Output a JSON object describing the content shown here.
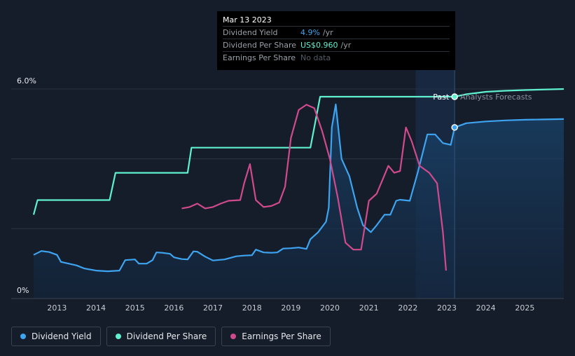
{
  "tooltip": {
    "date": "Mar 13 2023",
    "rows": [
      {
        "label": "Dividend Yield",
        "value": "4.9%",
        "unit": "/yr"
      },
      {
        "label": "Dividend Per Share",
        "value": "US$0.960",
        "unit": "/yr"
      },
      {
        "label": "Earnings Per Share",
        "value": "No data",
        "unit": ""
      }
    ]
  },
  "annotations": {
    "past": "Past",
    "forecast": "Analysts Forecasts"
  },
  "legend": [
    {
      "label": "Dividend Yield",
      "color": "#3ea4f0"
    },
    {
      "label": "Dividend Per Share",
      "color": "#5ff0d0"
    },
    {
      "label": "Earnings Per Share",
      "color": "#d04a8c"
    }
  ],
  "chart_data": {
    "type": "line",
    "x_ticks": [
      "2013",
      "2014",
      "2015",
      "2016",
      "2017",
      "2018",
      "2019",
      "2020",
      "2021",
      "2022",
      "2023",
      "2024",
      "2025"
    ],
    "xlim": [
      2012.4,
      2026.0
    ],
    "ylim": [
      0,
      6.0
    ],
    "ytick_labels": [
      "0%",
      "6.0%"
    ],
    "grid": true,
    "past_forecast_split": 2023.2,
    "series": [
      {
        "name": "Dividend Yield",
        "color": "#3ea4f0",
        "fill": true,
        "points": [
          [
            2012.4,
            1.25
          ],
          [
            2012.6,
            1.36
          ],
          [
            2012.8,
            1.33
          ],
          [
            2013.0,
            1.25
          ],
          [
            2013.1,
            1.05
          ],
          [
            2013.3,
            1.0
          ],
          [
            2013.5,
            0.95
          ],
          [
            2013.7,
            0.86
          ],
          [
            2014.0,
            0.8
          ],
          [
            2014.3,
            0.78
          ],
          [
            2014.6,
            0.8
          ],
          [
            2014.75,
            1.1
          ],
          [
            2015.0,
            1.12
          ],
          [
            2015.1,
            1.0
          ],
          [
            2015.3,
            1.0
          ],
          [
            2015.45,
            1.1
          ],
          [
            2015.55,
            1.32
          ],
          [
            2015.7,
            1.31
          ],
          [
            2015.9,
            1.28
          ],
          [
            2016.0,
            1.18
          ],
          [
            2016.2,
            1.13
          ],
          [
            2016.35,
            1.12
          ],
          [
            2016.5,
            1.35
          ],
          [
            2016.6,
            1.34
          ],
          [
            2016.8,
            1.2
          ],
          [
            2017.0,
            1.09
          ],
          [
            2017.3,
            1.12
          ],
          [
            2017.6,
            1.21
          ],
          [
            2017.8,
            1.23
          ],
          [
            2018.0,
            1.24
          ],
          [
            2018.1,
            1.4
          ],
          [
            2018.3,
            1.32
          ],
          [
            2018.5,
            1.31
          ],
          [
            2018.65,
            1.32
          ],
          [
            2018.8,
            1.43
          ],
          [
            2019.0,
            1.44
          ],
          [
            2019.2,
            1.46
          ],
          [
            2019.4,
            1.42
          ],
          [
            2019.5,
            1.7
          ],
          [
            2019.7,
            1.9
          ],
          [
            2019.9,
            2.2
          ],
          [
            2019.97,
            2.6
          ],
          [
            2020.05,
            4.9
          ],
          [
            2020.15,
            5.56
          ],
          [
            2020.3,
            4.0
          ],
          [
            2020.5,
            3.5
          ],
          [
            2020.7,
            2.6
          ],
          [
            2020.85,
            2.1
          ],
          [
            2021.05,
            1.9
          ],
          [
            2021.2,
            2.1
          ],
          [
            2021.4,
            2.4
          ],
          [
            2021.55,
            2.4
          ],
          [
            2021.7,
            2.8
          ],
          [
            2021.8,
            2.83
          ],
          [
            2022.05,
            2.8
          ],
          [
            2022.25,
            3.6
          ],
          [
            2022.5,
            4.7
          ],
          [
            2022.7,
            4.7
          ],
          [
            2022.9,
            4.45
          ],
          [
            2023.1,
            4.4
          ],
          [
            2023.2,
            4.9
          ],
          [
            2023.5,
            5.02
          ],
          [
            2024.0,
            5.07
          ],
          [
            2024.5,
            5.1
          ],
          [
            2025.0,
            5.12
          ],
          [
            2025.5,
            5.13
          ],
          [
            2026.0,
            5.14
          ]
        ]
      },
      {
        "name": "Dividend Per Share",
        "color": "#5ff0d0",
        "fill": false,
        "points": [
          [
            2012.4,
            2.4
          ],
          [
            2012.5,
            2.82
          ],
          [
            2014.35,
            2.82
          ],
          [
            2014.5,
            3.6
          ],
          [
            2016.35,
            3.6
          ],
          [
            2016.45,
            4.32
          ],
          [
            2019.5,
            4.32
          ],
          [
            2019.75,
            5.78
          ],
          [
            2023.2,
            5.78
          ],
          [
            2023.5,
            5.85
          ],
          [
            2024.0,
            5.92
          ],
          [
            2024.5,
            5.95
          ],
          [
            2025.0,
            5.97
          ],
          [
            2026.0,
            6.0
          ]
        ]
      },
      {
        "name": "Earnings Per Share",
        "color": "#d04a8c",
        "fill": false,
        "points": [
          [
            2016.2,
            2.58
          ],
          [
            2016.4,
            2.62
          ],
          [
            2016.6,
            2.72
          ],
          [
            2016.8,
            2.58
          ],
          [
            2017.0,
            2.62
          ],
          [
            2017.2,
            2.72
          ],
          [
            2017.4,
            2.8
          ],
          [
            2017.7,
            2.82
          ],
          [
            2017.8,
            3.3
          ],
          [
            2017.95,
            3.85
          ],
          [
            2018.1,
            2.82
          ],
          [
            2018.3,
            2.62
          ],
          [
            2018.5,
            2.65
          ],
          [
            2018.7,
            2.75
          ],
          [
            2018.85,
            3.2
          ],
          [
            2019.0,
            4.6
          ],
          [
            2019.2,
            5.4
          ],
          [
            2019.4,
            5.55
          ],
          [
            2019.6,
            5.45
          ],
          [
            2019.8,
            4.8
          ],
          [
            2020.0,
            4.0
          ],
          [
            2020.2,
            2.9
          ],
          [
            2020.4,
            1.6
          ],
          [
            2020.6,
            1.4
          ],
          [
            2020.8,
            1.4
          ],
          [
            2021.0,
            2.8
          ],
          [
            2021.2,
            3.0
          ],
          [
            2021.35,
            3.4
          ],
          [
            2021.5,
            3.8
          ],
          [
            2021.65,
            3.6
          ],
          [
            2021.8,
            3.65
          ],
          [
            2021.95,
            4.9
          ],
          [
            2022.1,
            4.5
          ],
          [
            2022.3,
            3.8
          ],
          [
            2022.55,
            3.6
          ],
          [
            2022.75,
            3.3
          ],
          [
            2022.9,
            1.9
          ],
          [
            2022.98,
            0.8
          ]
        ]
      }
    ]
  }
}
